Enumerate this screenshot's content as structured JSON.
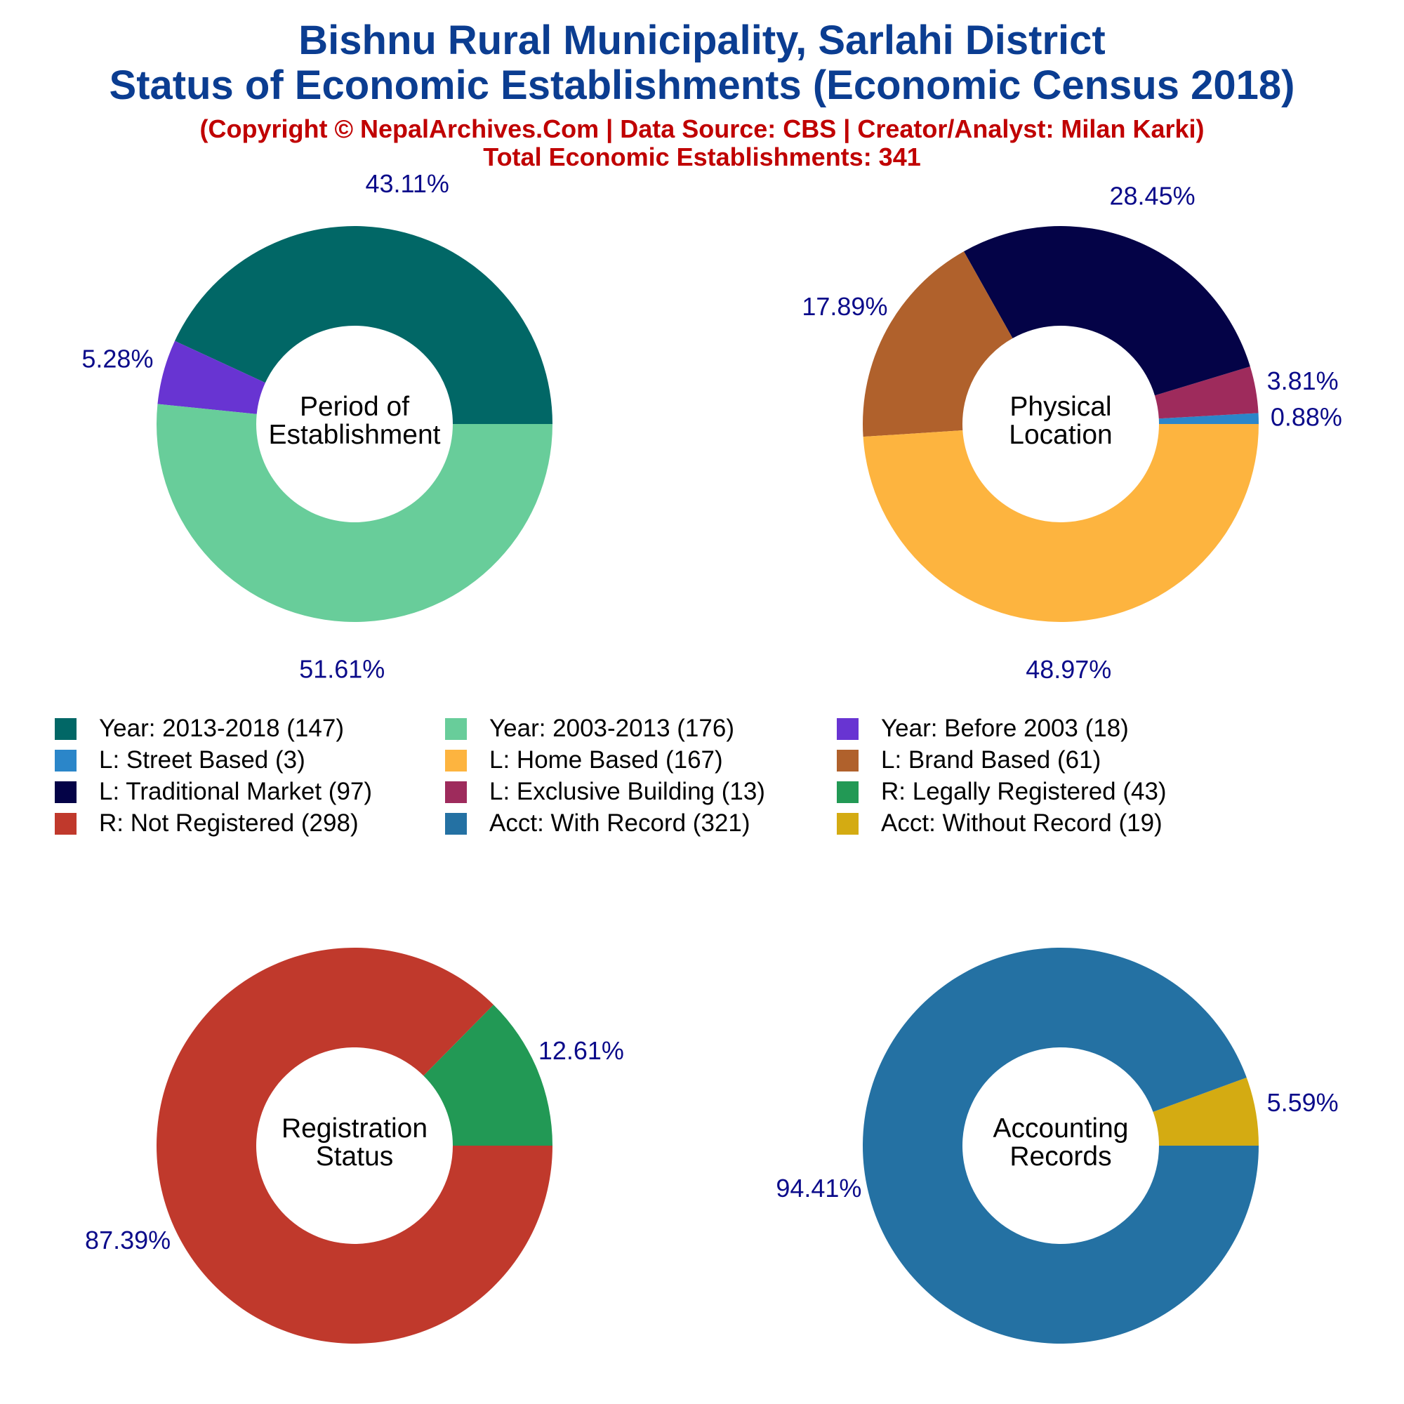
{
  "title_line1": "Bishnu Rural Municipality, Sarlahi District",
  "title_line2": "Status of Economic Establishments (Economic Census 2018)",
  "subtitle_line1": "(Copyright © NepalArchives.Com | Data Source: CBS | Creator/Analyst: Milan Karki)",
  "subtitle_line2": "Total Economic Establishments: 341",
  "chart_data": [
    {
      "type": "pie",
      "center_label": [
        "Period of",
        "Establishment"
      ],
      "slices": [
        {
          "label": "Year: 2013-2018",
          "value": 147,
          "percent_label": "43.11%",
          "color": "#016766"
        },
        {
          "label": "Year: Before 2003",
          "value": 18,
          "percent_label": "5.28%",
          "color": "#6834d2"
        },
        {
          "label": "Year: 2003-2013",
          "value": 176,
          "percent_label": "51.61%",
          "color": "#68cd9a"
        }
      ]
    },
    {
      "type": "pie",
      "center_label": [
        "Physical",
        "Location"
      ],
      "slices": [
        {
          "label": "L: Street Based",
          "value": 3,
          "percent_label": "0.88%",
          "color": "#2b86c9"
        },
        {
          "label": "L: Exclusive Building",
          "value": 13,
          "percent_label": "3.81%",
          "color": "#9e2b5c"
        },
        {
          "label": "L: Traditional Market",
          "value": 97,
          "percent_label": "28.45%",
          "color": "#040347"
        },
        {
          "label": "L: Brand Based",
          "value": 61,
          "percent_label": "17.89%",
          "color": "#b0612c"
        },
        {
          "label": "L: Home Based",
          "value": 167,
          "percent_label": "48.97%",
          "color": "#fdb43f"
        }
      ]
    },
    {
      "type": "pie",
      "center_label": [
        "Registration",
        "Status"
      ],
      "slices": [
        {
          "label": "R: Legally Registered",
          "value": 43,
          "percent_label": "12.61%",
          "color": "#229955"
        },
        {
          "label": "R: Not Registered",
          "value": 298,
          "percent_label": "87.39%",
          "color": "#c0392c"
        }
      ]
    },
    {
      "type": "pie",
      "center_label": [
        "Accounting",
        "Records"
      ],
      "slices": [
        {
          "label": "Acct: Without Record",
          "value": 19,
          "percent_label": "5.59%",
          "color": "#d4ab12"
        },
        {
          "label": "Acct: With Record",
          "value": 321,
          "percent_label": "94.41%",
          "color": "#2471a3"
        }
      ]
    }
  ],
  "legend": [
    {
      "label": "Year: 2013-2018 (147)",
      "color": "#016766"
    },
    {
      "label": "Year: 2003-2013 (176)",
      "color": "#68cd9a"
    },
    {
      "label": "Year: Before 2003 (18)",
      "color": "#6834d2"
    },
    {
      "label": "L: Street Based (3)",
      "color": "#2b86c9"
    },
    {
      "label": "L: Home Based (167)",
      "color": "#fdb43f"
    },
    {
      "label": "L: Brand Based (61)",
      "color": "#b0612c"
    },
    {
      "label": "L: Traditional Market (97)",
      "color": "#040347"
    },
    {
      "label": "L: Exclusive Building (13)",
      "color": "#9e2b5c"
    },
    {
      "label": "R: Legally Registered (43)",
      "color": "#229955"
    },
    {
      "label": "R: Not Registered (298)",
      "color": "#c0392c"
    },
    {
      "label": "Acct: With Record (321)",
      "color": "#2471a3"
    },
    {
      "label": "Acct: Without Record (19)",
      "color": "#d4ab12"
    }
  ]
}
